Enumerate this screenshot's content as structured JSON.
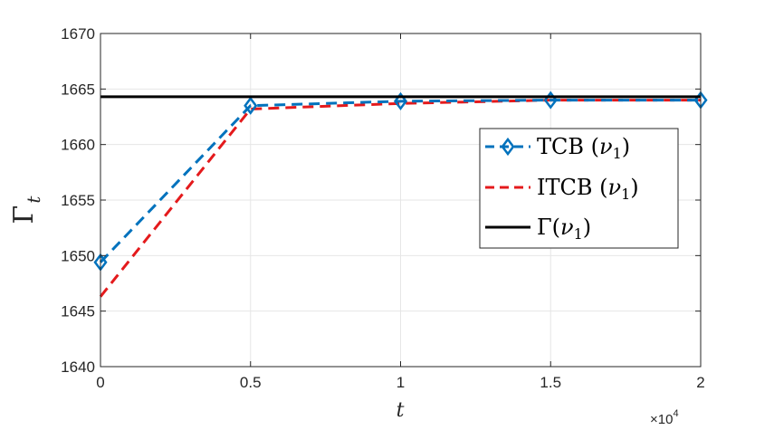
{
  "chart_data": {
    "type": "line",
    "xlabel": "t",
    "ylabel": "Γ",
    "ylabel_sub": "t",
    "x_multiplier": "×10",
    "x_multiplier_exp": "4",
    "xlim": [
      0,
      2
    ],
    "ylim": [
      1640,
      1670
    ],
    "grid": true,
    "legend_position": "right-middle",
    "x_ticks": [
      "0",
      "0.5",
      "1",
      "1.5",
      "2"
    ],
    "y_ticks": [
      "1640",
      "1645",
      "1650",
      "1655",
      "1660",
      "1665",
      "1670"
    ],
    "x": [
      0,
      0.5,
      1,
      1.5,
      2
    ],
    "series": [
      {
        "name": "TCB (ν₁)",
        "legend_main": "TCB (",
        "legend_var": "ν",
        "legend_sub": "1",
        "legend_tail": ")",
        "values": [
          1649.4,
          1663.5,
          1663.9,
          1664.0,
          1664.0
        ],
        "color": "#0072BD",
        "style": "dashed",
        "marker": "diamond"
      },
      {
        "name": "ITCB (ν₁)",
        "legend_main": "ITCB (",
        "legend_var": "ν",
        "legend_sub": "1",
        "legend_tail": ")",
        "values": [
          1646.3,
          1663.2,
          1663.7,
          1664.0,
          1664.0
        ],
        "color": "#E41A1C",
        "style": "dashed",
        "marker": "none"
      },
      {
        "name": "Γ(ν₁)",
        "legend_main": "Γ(",
        "legend_var": "ν",
        "legend_sub": "1",
        "legend_tail": ")",
        "values": [
          1664.3,
          1664.3,
          1664.3,
          1664.3,
          1664.3
        ],
        "color": "#000000",
        "style": "solid",
        "marker": "none"
      }
    ]
  }
}
